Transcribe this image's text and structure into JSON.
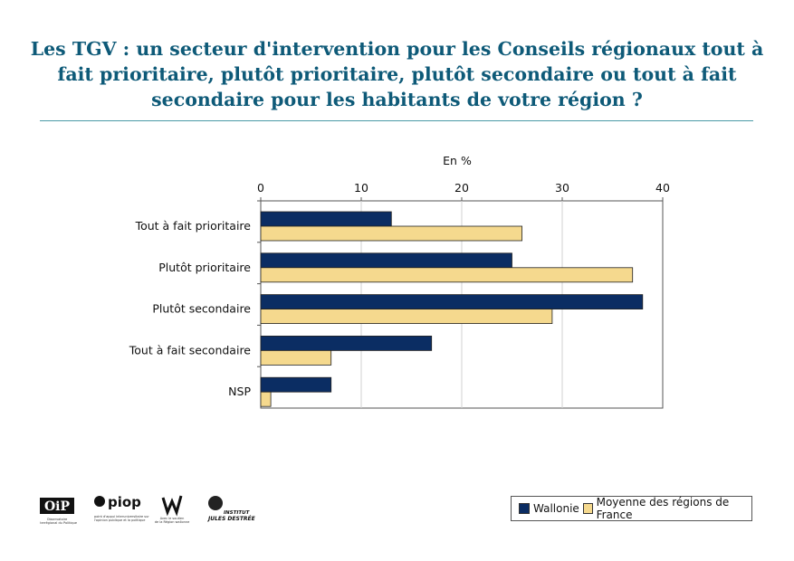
{
  "title": "Les TGV : un secteur d'intervention pour les Conseils régionaux tout à fait prioritaire, plutôt prioritaire, plutôt secondaire ou tout à fait secondaire pour les habitants de votre région ?",
  "colors": {
    "title": "#0e5a78",
    "wallonie": "#0b2d63",
    "france": "#f5d98e",
    "rule": "#4a9aa6"
  },
  "logos": {
    "oip": "OiP",
    "oip_caption": "Observatoire Interrégional du Politique",
    "piop": "piop",
    "piop_caption": "point d'appui interuniversitaire sur l'opinion publique et la politique",
    "wallonie_caption": "Avec le soutien de la Région wallonne",
    "ijd": "INSTITUT JULES DESTRÉE"
  },
  "chart_data": {
    "type": "bar",
    "orientation": "horizontal",
    "unit_label": "En %",
    "xlim": [
      0,
      40
    ],
    "xticks": [
      0,
      10,
      20,
      30,
      40
    ],
    "categories": [
      "Tout à fait prioritaire",
      "Plutôt prioritaire",
      "Plutôt secondaire",
      "Tout à fait secondaire",
      "NSP"
    ],
    "series": [
      {
        "name": "Wallonie",
        "values": [
          13,
          25,
          38,
          17,
          7
        ]
      },
      {
        "name": "Moyenne des régions de France",
        "values": [
          26,
          37,
          29,
          7,
          1
        ]
      }
    ],
    "grid": true,
    "legend_position": "bottom-right"
  }
}
